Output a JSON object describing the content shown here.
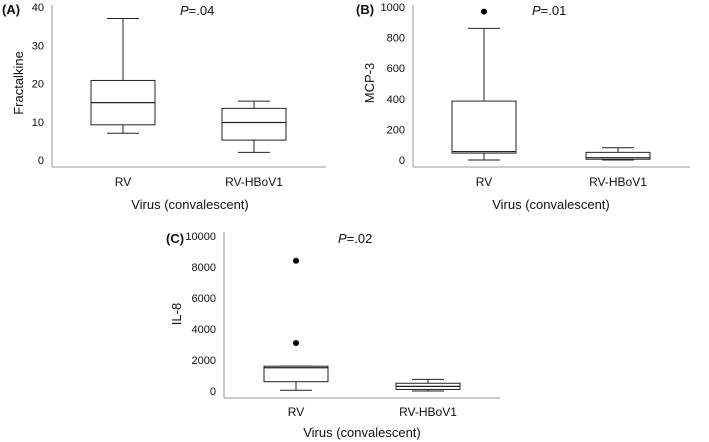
{
  "chart_data": [
    {
      "type": "box",
      "panel_label": "(A)",
      "p_prefix": "P",
      "p_suffix": "=.04",
      "ylabel": "Fractalkine",
      "xlabel": "Virus (convalescent)",
      "categories": [
        "RV",
        "RV-HBoV1"
      ],
      "ylim": [
        0,
        40
      ],
      "yticks": [
        "0",
        "10",
        "20",
        "30",
        "40"
      ],
      "tick_values": [
        0,
        10,
        20,
        30,
        40
      ],
      "grid": false,
      "boxes": [
        {
          "min": 7,
          "q1": 9.2,
          "median": 15,
          "q3": 20.8,
          "max": 37,
          "outliers": []
        },
        {
          "min": 2,
          "q1": 5.2,
          "median": 9.8,
          "q3": 13.5,
          "max": 15.4,
          "outliers": []
        }
      ]
    },
    {
      "type": "box",
      "panel_label": "(B)",
      "p_prefix": "P",
      "p_suffix": "=.01",
      "ylabel": "MCP-3",
      "xlabel": "Virus (convalescent)",
      "categories": [
        "RV",
        "RV-HBoV1"
      ],
      "ylim": [
        0,
        1000
      ],
      "yticks": [
        "0",
        "200",
        "400",
        "600",
        "800",
        "1000"
      ],
      "tick_values": [
        0,
        200,
        400,
        600,
        800,
        1000
      ],
      "grid": false,
      "boxes": [
        {
          "min": 0,
          "q1": 45,
          "median": 55,
          "q3": 385,
          "max": 860,
          "outliers": [
            970
          ]
        },
        {
          "min": 0,
          "q1": 5,
          "median": 15,
          "q3": 50,
          "max": 80,
          "outliers": []
        }
      ]
    },
    {
      "type": "box",
      "panel_label": "(C)",
      "p_prefix": "P",
      "p_suffix": "=.02",
      "ylabel": "IL-8",
      "xlabel": "Virus (convalescent)",
      "categories": [
        "RV",
        "RV-HBoV1"
      ],
      "ylim": [
        0,
        10000
      ],
      "yticks": [
        "0",
        "2000",
        "4000",
        "6000",
        "8000",
        "10000"
      ],
      "tick_values": [
        0,
        2000,
        4000,
        6000,
        8000,
        10000
      ],
      "grid": false,
      "boxes": [
        {
          "min": 50,
          "q1": 600,
          "median": 1500,
          "q3": 1600,
          "max": 1600,
          "outliers": [
            3100,
            8400
          ]
        },
        {
          "min": 0,
          "q1": 100,
          "median": 300,
          "q3": 500,
          "max": 750,
          "outliers": []
        }
      ]
    }
  ]
}
